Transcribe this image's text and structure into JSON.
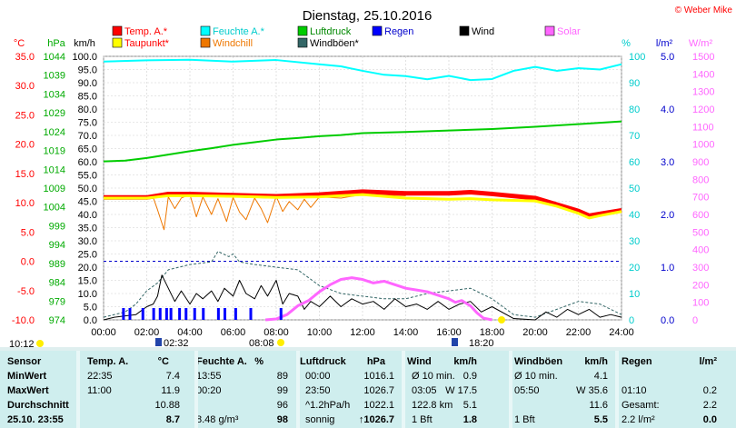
{
  "copyright": "© Weber Mike",
  "chart_data": {
    "type": "line",
    "title": "Dienstag, 25.10.2016",
    "x_ticks": [
      "00:00",
      "02:00",
      "04:00",
      "06:00",
      "08:00",
      "10:00",
      "12:00",
      "14:00",
      "16:00",
      "18:00",
      "20:00",
      "22:00",
      "24:00"
    ],
    "axes": {
      "temp": {
        "unit": "°C",
        "color": "#ff0000",
        "ticks": [
          "35.0",
          "30.0",
          "25.0",
          "20.0",
          "15.0",
          "10.0",
          "5.0",
          "0.0",
          "-5.0",
          "-10.0"
        ],
        "range": [
          -10,
          35
        ]
      },
      "press": {
        "unit": "hPa",
        "color": "#00aa00",
        "ticks": [
          "1044",
          "1039",
          "1034",
          "1029",
          "1024",
          "1019",
          "1014",
          "1009",
          "1004",
          "999",
          "994",
          "989",
          "984",
          "979",
          "974"
        ],
        "range": [
          974,
          1044
        ]
      },
      "speed": {
        "unit": "km/h",
        "color": "#000000",
        "ticks": [
          "100.0",
          "95.0",
          "90.0",
          "85.0",
          "80.0",
          "75.0",
          "70.0",
          "65.0",
          "60.0",
          "55.0",
          "50.0",
          "45.0",
          "40.0",
          "35.0",
          "30.0",
          "25.0",
          "20.0",
          "15.0",
          "10.0",
          "5.0",
          "0.0"
        ],
        "range": [
          0,
          100
        ]
      },
      "hum": {
        "unit": "%",
        "color": "#00cccc",
        "ticks": [
          "100",
          "90",
          "80",
          "70",
          "60",
          "50",
          "40",
          "30",
          "20",
          "10",
          "0"
        ],
        "range": [
          0,
          100
        ]
      },
      "rain": {
        "unit": "l/m²",
        "color": "#0000cc",
        "ticks": [
          "5.0",
          "4.0",
          "3.0",
          "2.0",
          "1.0",
          "0.0"
        ],
        "range": [
          0,
          5
        ]
      },
      "solar": {
        "unit": "W/m²",
        "color": "#ff66ff",
        "ticks": [
          "1500",
          "1400",
          "1300",
          "1200",
          "1100",
          "1000",
          "900",
          "800",
          "700",
          "600",
          "500",
          "400",
          "300",
          "200",
          "100",
          "0"
        ],
        "range": [
          0,
          1500
        ]
      }
    },
    "legend": [
      {
        "label": "Temp. A.*",
        "color": "#ff0000",
        "text_color": "#ff0000"
      },
      {
        "label": "Feuchte A.*",
        "color": "#00ffff",
        "text_color": "#00cccc"
      },
      {
        "label": "Luftdruck",
        "color": "#00cc00",
        "text_color": "#008800"
      },
      {
        "label": "Regen",
        "color": "#0000ff",
        "text_color": "#0000cc"
      },
      {
        "label": "Wind",
        "color": "#000000",
        "text_color": "#000000"
      },
      {
        "label": "Solar",
        "color": "#ff66ff",
        "text_color": "#ff66ff"
      },
      {
        "label": "Taupunkt*",
        "color": "#ffff00",
        "text_color": "#ff0000"
      },
      {
        "label": "Windchill",
        "color": "#ee7700",
        "text_color": "#ee7700"
      },
      {
        "label": "Windböen*",
        "color": "#336666",
        "text_color": "#000000"
      }
    ],
    "series": [
      {
        "name": "Temp. A.*",
        "color": "#ff0000",
        "axis": "temp",
        "x": [
          0,
          2,
          3,
          4,
          6,
          8,
          10,
          12,
          14,
          16,
          17,
          18,
          20,
          21,
          22,
          22.5,
          23,
          24
        ],
        "y": [
          10.9,
          10.9,
          11.5,
          11.5,
          11.3,
          11.1,
          11.4,
          11.9,
          11.6,
          11.6,
          11.8,
          11.5,
          10.8,
          9.7,
          8.6,
          7.8,
          8.1,
          8.7
        ]
      },
      {
        "name": "Taupunkt*",
        "color": "#ffff00",
        "axis": "temp",
        "x": [
          0,
          2,
          3,
          4,
          6,
          8,
          10,
          12,
          14,
          16,
          17,
          18,
          20,
          21,
          22,
          22.5,
          23,
          24
        ],
        "y": [
          10.8,
          10.8,
          11.2,
          11.2,
          11.1,
          10.9,
          11.0,
          11.4,
          10.8,
          10.6,
          10.7,
          10.5,
          10.3,
          9.4,
          8.2,
          7.4,
          7.8,
          8.5
        ]
      },
      {
        "name": "Feuchte A.*",
        "color": "#00ffff",
        "axis": "hum",
        "x": [
          0,
          2,
          4,
          6,
          8,
          10,
          11,
          12,
          13,
          14,
          15,
          16,
          17,
          18,
          19,
          20,
          21,
          22,
          23,
          24
        ],
        "y": [
          98,
          98.5,
          98.7,
          98,
          98.6,
          97,
          96.2,
          94.5,
          93,
          92.5,
          91.3,
          92.6,
          91,
          91.4,
          94.5,
          96,
          94.5,
          95.5,
          95,
          97
        ]
      },
      {
        "name": "Luftdruck",
        "color": "#00cc00",
        "axis": "press",
        "x": [
          0,
          1,
          2,
          3,
          4,
          5,
          6,
          7,
          8,
          9,
          10,
          11,
          12,
          14,
          16,
          18,
          20,
          22,
          24
        ],
        "y": [
          1016.1,
          1016.3,
          1017.0,
          1017.9,
          1018.8,
          1019.6,
          1020.5,
          1021.2,
          1021.9,
          1022.3,
          1022.8,
          1023.1,
          1023.6,
          1023.9,
          1024.3,
          1024.7,
          1025.3,
          1026.0,
          1026.7
        ]
      },
      {
        "name": "Windchill",
        "color": "#ee7700",
        "axis": "temp",
        "x": [
          2.3,
          2.5,
          2.8,
          3,
          3.3,
          3.6,
          4,
          4.3,
          4.6,
          5,
          5.3,
          5.7,
          6,
          6.3,
          6.6,
          7,
          7.3,
          7.6,
          8,
          8.3,
          8.6,
          9,
          9.3,
          9.6,
          10,
          11,
          12,
          14
        ],
        "y": [
          10.9,
          8.8,
          5.4,
          11.0,
          9.0,
          10.8,
          11.4,
          7.6,
          11.0,
          8.0,
          10.7,
          6.8,
          10.9,
          8.4,
          7.1,
          10.8,
          9.0,
          6.6,
          11.1,
          8.5,
          10.2,
          8.8,
          10.6,
          9.2,
          11.0,
          10.8,
          11.4,
          11.2
        ]
      },
      {
        "name": "Windböen*",
        "color": "#336666",
        "axis": "speed",
        "dashed": true,
        "x": [
          0,
          1,
          1.5,
          2,
          2.5,
          3,
          4,
          5,
          5.3,
          5.8,
          6,
          6.3,
          7,
          8,
          9,
          10,
          11,
          12,
          13,
          14,
          15,
          16,
          17,
          18,
          18.5,
          19,
          20,
          21,
          22,
          23,
          24
        ],
        "y": [
          1,
          3,
          6,
          11,
          14,
          19,
          21,
          22,
          26,
          24,
          25,
          22,
          21,
          20,
          19,
          13,
          10,
          9,
          8,
          8,
          10,
          11,
          12,
          8,
          5,
          2,
          1,
          4,
          7,
          6,
          2
        ]
      },
      {
        "name": "Wind",
        "color": "#000000",
        "axis": "speed",
        "x": [
          0,
          0.5,
          1,
          1.5,
          2,
          2.3,
          2.5,
          2.7,
          3,
          3.3,
          3.6,
          4,
          4.3,
          4.6,
          5,
          5.3,
          5.6,
          6,
          6.3,
          6.6,
          7,
          7.3,
          7.6,
          8,
          8.3,
          8.6,
          9,
          9.3,
          9.6,
          10,
          10.5,
          11,
          11.5,
          12,
          12.5,
          13,
          13.5,
          14,
          14.5,
          15,
          15.5,
          16,
          16.5,
          17,
          17.5,
          18,
          19,
          20,
          20.5,
          21,
          21.5,
          22,
          22.5,
          23,
          23.5,
          24
        ],
        "y": [
          0,
          1,
          1.5,
          2,
          5,
          6,
          9,
          17,
          12,
          7,
          11,
          6,
          10,
          8,
          11,
          7,
          12,
          9,
          15,
          10,
          8,
          13,
          9,
          15,
          6,
          10,
          9,
          4,
          7,
          5,
          9,
          5,
          8,
          6,
          7,
          4,
          8,
          5,
          6,
          4,
          7,
          4,
          6,
          7,
          3,
          5,
          0.5,
          0,
          3,
          1,
          4,
          2,
          4,
          1,
          2,
          1
        ]
      },
      {
        "name": "Solar",
        "color": "#ff66ff",
        "axis": "solar",
        "x": [
          7.5,
          8,
          8.5,
          9,
          9.5,
          10,
          10.5,
          11,
          11.5,
          12,
          12.5,
          13,
          13.5,
          14,
          14.5,
          15,
          15.5,
          16,
          16.3,
          16.6,
          17,
          17.3,
          17.6,
          18
        ],
        "y": [
          0,
          5,
          30,
          80,
          110,
          160,
          200,
          230,
          240,
          230,
          210,
          220,
          200,
          180,
          170,
          160,
          140,
          120,
          100,
          110,
          80,
          40,
          10,
          0
        ]
      }
    ],
    "rain_marks": [
      0.9,
      1.2,
      1.8,
      2.3,
      2.6,
      2.9,
      3.1,
      3.5,
      3.8,
      4.2,
      4.6,
      5.3,
      5.6,
      6.1,
      6.8,
      8.2
    ],
    "time_markers": {
      "left": "10:12",
      "sunrise": "02:32",
      "sun_a": "08:08",
      "moon": "18:20"
    }
  },
  "stats": {
    "headers": [
      "Sensor",
      "Temp. A.",
      "°C",
      "Feuchte A.",
      "%",
      "Luftdruck",
      "hPa",
      "Wind",
      "km/h",
      "Windböen",
      "km/h",
      "Regen",
      "l/m²"
    ],
    "rows": [
      {
        "label": "MinWert",
        "cols": [
          "22:35",
          "7.4",
          "13:55",
          "89",
          "00:00",
          "1016.1",
          "Ø 10 min.",
          "0.9",
          "Ø 10 min.",
          "4.1",
          "",
          ""
        ]
      },
      {
        "label": "MaxWert",
        "cols": [
          "11:00",
          "11.9",
          "00:20",
          "99",
          "23:50",
          "1026.7",
          "03:05",
          "W 17.5",
          "05:50",
          "W 35.6",
          "01:10",
          "0.2"
        ]
      },
      {
        "label": "Durchschnitt",
        "cols": [
          "",
          "10.88",
          "",
          "96",
          "^1.2hPa/h",
          "1022.1",
          "122.8 km",
          "5.1",
          "",
          "11.6",
          "Gesamt:",
          "2.2"
        ]
      },
      {
        "label": "25.10. 23:55",
        "cols": [
          "",
          "8.7",
          "8.48 g/m³",
          "98",
          "sonnig",
          "↑1026.7",
          "1 Bft",
          "1.8",
          "1 Bft",
          "5.5",
          "2.2 l/m²",
          "0.0"
        ]
      }
    ]
  }
}
